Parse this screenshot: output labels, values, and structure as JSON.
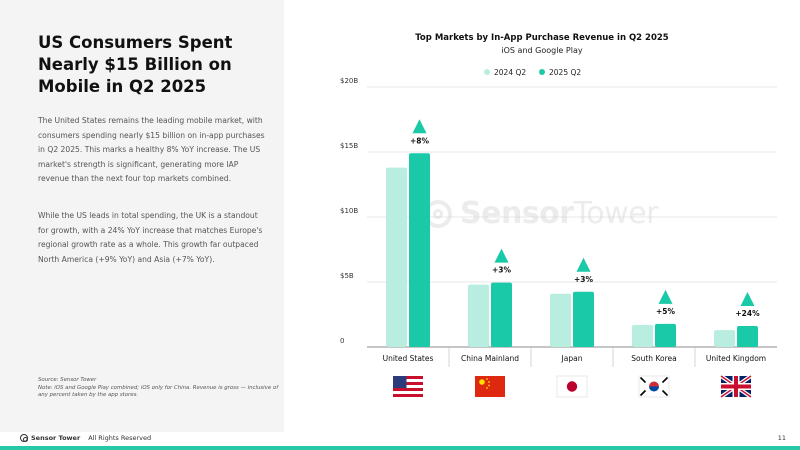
{
  "left_panel": {
    "headline": "US Consumers Spent Nearly $15 Billion on Mobile in Q2 2025",
    "paragraph1": "The United States remains the leading mobile market, with consumers spending nearly $15 billion on in-app purchases in Q2 2025. This marks a healthy 8% YoY increase. The US market's strength is significant, generating more IAP revenue than the next four top markets combined.",
    "paragraph2": "While the US leads in total spending, the UK is a standout for growth, with a 24% YoY increase that matches Europe's regional growth rate as a whole. This growth far outpaced North America (+9% YoY) and Asia (+7% YoY).",
    "source_line1": "Source: Sensor Tower",
    "source_line2": "Note: iOS and Google Play combined; iOS only for China. Revenue is gross — inclusive of any percent taken by the app stores."
  },
  "footer": {
    "brand": "Sensor Tower",
    "rights": "All Rights Reserved",
    "page_number": "11"
  },
  "watermark": {
    "bold": "Sensor",
    "light": "Tower"
  },
  "colors": {
    "series_2024": "#b8ede0",
    "series_2025": "#19c9a7",
    "arrow": "#19c9a7",
    "accent_bar": "#25c9a6"
  },
  "chart_data": {
    "type": "bar",
    "title": "Top Markets by In-App Purchase Revenue in Q2 2025",
    "subtitle": "iOS and Google Play",
    "categories": [
      "United States",
      "China Mainland",
      "Japan",
      "South Korea",
      "United Kingdom"
    ],
    "series": [
      {
        "name": "2024 Q2",
        "values": [
          13.8,
          4.8,
          4.1,
          1.7,
          1.3
        ]
      },
      {
        "name": "2025 Q2",
        "values": [
          14.9,
          4.95,
          4.25,
          1.78,
          1.62
        ]
      }
    ],
    "growth_labels": [
      "+8%",
      "+3%",
      "+3%",
      "+5%",
      "+24%"
    ],
    "y_ticks": [
      0,
      5,
      10,
      15,
      20
    ],
    "y_tick_labels": [
      "0",
      "$5B",
      "$10B",
      "$15B",
      "$20B"
    ],
    "ylim": [
      0,
      20
    ],
    "grid": true,
    "legend_position": "top-center",
    "flag_icons": [
      "us-flag-icon",
      "china-flag-icon",
      "japan-flag-icon",
      "south-korea-flag-icon",
      "uk-flag-icon"
    ]
  }
}
